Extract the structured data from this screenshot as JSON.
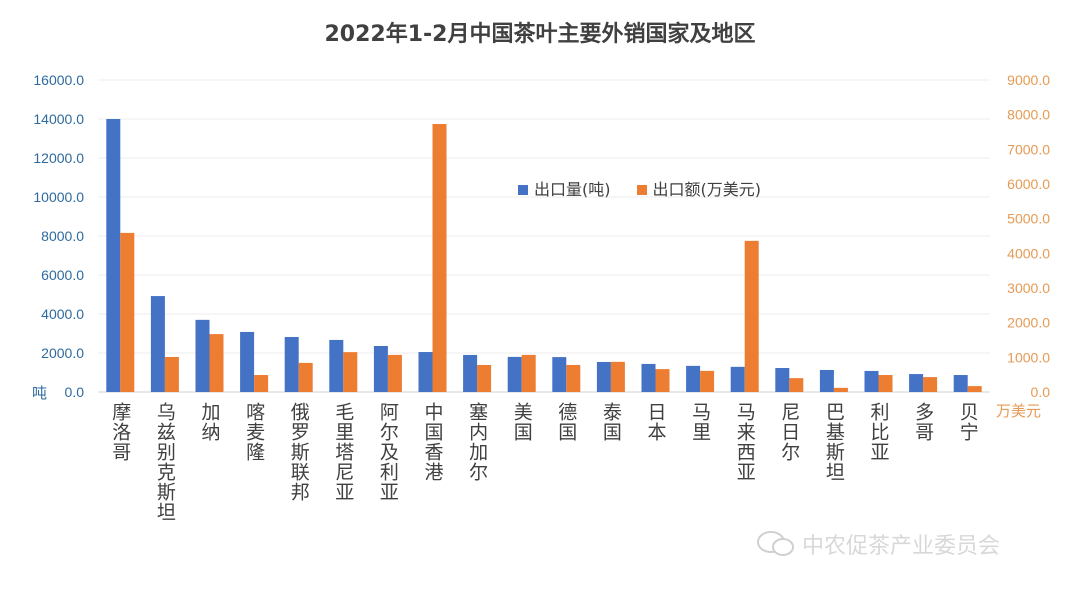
{
  "chart_data": {
    "type": "bar",
    "title": "2022年1-2月中国茶叶主要外销国家及地区",
    "categories": [
      "摩洛哥",
      "乌兹别克斯坦",
      "加纳",
      "喀麦隆",
      "俄罗斯联邦",
      "毛里塔尼亚",
      "阿尔及利亚",
      "中国香港",
      "塞内加尔",
      "美国",
      "德国",
      "泰国",
      "日本",
      "马里",
      "马来西亚",
      "尼日尔",
      "巴基斯坦",
      "利比亚",
      "多哥",
      "贝宁"
    ],
    "series": [
      {
        "name": "出口量(吨)",
        "axis": "left",
        "color": "#4472c4",
        "values": [
          14000,
          4920,
          3700,
          3080,
          2820,
          2670,
          2360,
          2050,
          1900,
          1800,
          1790,
          1540,
          1440,
          1340,
          1290,
          1230,
          1130,
          1080,
          920,
          870
        ]
      },
      {
        "name": "出口额(万美元)",
        "axis": "right",
        "color": "#ed7d31",
        "values": [
          4590,
          1010,
          1670,
          490,
          840,
          1150,
          1070,
          7730,
          780,
          1070,
          780,
          870,
          660,
          610,
          4360,
          400,
          120,
          490,
          430,
          170
        ]
      }
    ],
    "left_axis": {
      "label": "吨",
      "ylim": [
        0,
        16000
      ],
      "ticks": [
        "0.0",
        "2000.0",
        "4000.0",
        "6000.0",
        "8000.0",
        "10000.0",
        "12000.0",
        "14000.0",
        "16000.0"
      ],
      "color": "#2e6a9e"
    },
    "right_axis": {
      "label": "万美元",
      "ylim": [
        0,
        9000
      ],
      "ticks": [
        "0.0",
        "1000.0",
        "2000.0",
        "3000.0",
        "4000.0",
        "5000.0",
        "6000.0",
        "7000.0",
        "8000.0",
        "9000.0"
      ],
      "color": "#e69a55"
    },
    "legend_position": "center",
    "grid": true
  },
  "watermark": "中农促茶产业委员会"
}
